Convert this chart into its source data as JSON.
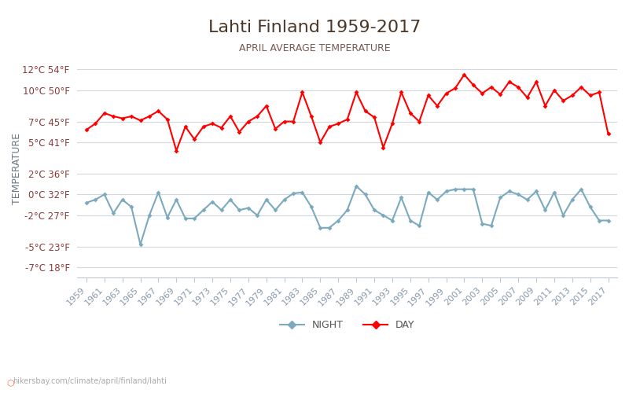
{
  "title": "Lahti Finland 1959-2017",
  "subtitle": "APRIL AVERAGE TEMPERATURE",
  "xlabel": "",
  "ylabel": "TEMPERATURE",
  "watermark": "hikersbay.com/climate/april/finland/lahti",
  "bg_color": "#ffffff",
  "grid_color": "#d0d8e0",
  "yticks_celsius": [
    -7,
    -5,
    -2,
    0,
    2,
    5,
    7,
    10,
    12
  ],
  "yticks_fahrenheit": [
    18,
    23,
    27,
    32,
    36,
    41,
    45,
    50,
    54
  ],
  "years": [
    1959,
    1960,
    1961,
    1962,
    1963,
    1964,
    1965,
    1966,
    1967,
    1968,
    1969,
    1970,
    1971,
    1972,
    1973,
    1974,
    1975,
    1976,
    1977,
    1978,
    1979,
    1980,
    1981,
    1982,
    1983,
    1984,
    1985,
    1986,
    1987,
    1988,
    1989,
    1990,
    1991,
    1992,
    1993,
    1994,
    1995,
    1996,
    1997,
    1998,
    1999,
    2000,
    2001,
    2002,
    2003,
    2004,
    2005,
    2006,
    2007,
    2008,
    2009,
    2010,
    2011,
    2012,
    2013,
    2014,
    2015,
    2016,
    2017
  ],
  "day_temps": [
    6.2,
    6.8,
    7.8,
    7.5,
    7.3,
    7.5,
    7.1,
    7.5,
    8.0,
    7.2,
    4.2,
    6.5,
    5.3,
    6.5,
    6.8,
    6.4,
    7.5,
    6.0,
    7.0,
    7.5,
    8.5,
    6.3,
    7.0,
    7.0,
    9.8,
    7.5,
    5.0,
    6.5,
    6.8,
    7.2,
    9.8,
    8.0,
    7.4,
    4.5,
    6.8,
    9.8,
    7.8,
    7.0,
    9.5,
    8.5,
    9.7,
    10.2,
    11.5,
    10.5,
    9.7,
    10.3,
    9.6,
    10.8,
    10.3,
    9.3,
    10.8,
    8.5,
    10.0,
    9.0,
    9.5,
    10.3,
    9.5,
    9.8,
    5.8
  ],
  "night_temps": [
    -0.8,
    -0.5,
    0.0,
    -1.8,
    -0.5,
    -1.2,
    -4.8,
    -2.0,
    0.2,
    -2.2,
    -0.5,
    -2.3,
    -2.3,
    -1.5,
    -0.7,
    -1.5,
    -0.5,
    -1.5,
    -1.3,
    -2.0,
    -0.5,
    -1.5,
    -0.5,
    0.1,
    0.2,
    -1.2,
    -3.2,
    -3.2,
    -2.5,
    -1.5,
    0.8,
    0.0,
    -1.5,
    -2.0,
    -2.5,
    -0.3,
    -2.5,
    -3.0,
    0.2,
    -0.5,
    0.3,
    0.5,
    0.5,
    0.5,
    -2.8,
    -3.0,
    -0.3,
    0.3,
    0.0,
    -0.5,
    0.3,
    -1.5,
    0.2,
    -2.0,
    -0.5,
    0.5,
    -1.2,
    -2.5,
    -2.5
  ],
  "day_color": "#ff0000",
  "night_color": "#7baabe",
  "day_marker": "D",
  "night_marker": "D",
  "marker_size": 3,
  "line_width": 1.5,
  "title_color": "#4a3728",
  "subtitle_color": "#7a5a50",
  "ylabel_color": "#6a7a8a",
  "tick_label_color": "#8b3a3a",
  "axis_label_color": "#8b6060"
}
